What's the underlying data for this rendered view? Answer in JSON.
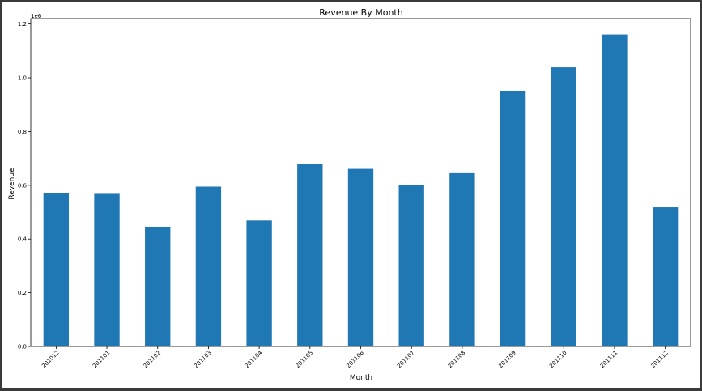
{
  "chart_data": {
    "type": "bar",
    "title": "Revenue By Month",
    "xlabel": "Month",
    "ylabel": "Revenue",
    "scale_label": "1e6",
    "categories": [
      "201012",
      "201101",
      "201102",
      "201103",
      "201104",
      "201105",
      "201106",
      "201107",
      "201108",
      "201109",
      "201110",
      "201111",
      "201112"
    ],
    "values": [
      572000,
      568000,
      446000,
      595000,
      469000,
      678000,
      661000,
      600000,
      645000,
      952000,
      1039000,
      1161000,
      518000
    ],
    "ylim": [
      0,
      1220000
    ],
    "yticks": [
      0,
      200000,
      400000,
      600000,
      800000,
      1000000,
      1200000
    ],
    "ytick_labels": [
      "0.0",
      "0.2",
      "0.4",
      "0.6",
      "0.8",
      "1.0",
      "1.2"
    ],
    "bar_color": "#1f77b4",
    "grid": false,
    "legend": "none"
  }
}
